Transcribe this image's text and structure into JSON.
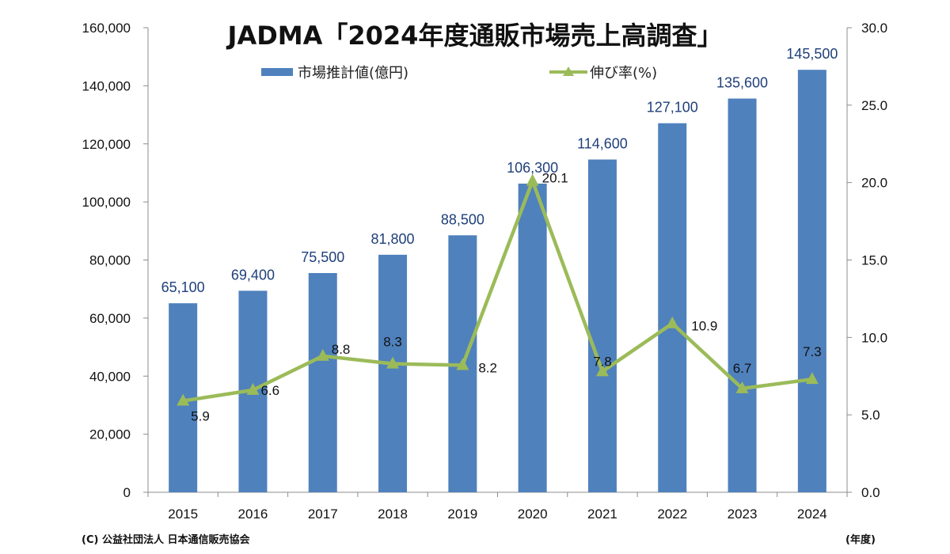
{
  "chart_data": {
    "type": "bar",
    "title": "JADMA「2024年度通販市場売上高調査」",
    "categories": [
      "2015",
      "2016",
      "2017",
      "2018",
      "2019",
      "2020",
      "2021",
      "2022",
      "2023",
      "2024"
    ],
    "series": [
      {
        "name": "市場推計値(億円)",
        "type": "bar",
        "axis": "left",
        "color": "#4f81bd",
        "values": [
          65100,
          69400,
          75500,
          81800,
          88500,
          106300,
          114600,
          127100,
          135600,
          145500
        ],
        "labels": [
          "65,100",
          "69,400",
          "75,500",
          "81,800",
          "88,500",
          "106,300",
          "114,600",
          "127,100",
          "135,600",
          "145,500"
        ]
      },
      {
        "name": "伸び率(%)",
        "type": "line",
        "axis": "right",
        "marker": "triangle",
        "color": "#9bbb59",
        "values": [
          5.9,
          6.6,
          8.8,
          8.3,
          8.2,
          20.1,
          7.8,
          10.9,
          6.7,
          7.3
        ],
        "labels": [
          "5.9",
          "6.6",
          "8.8",
          "8.3",
          "8.2",
          "20.1",
          "7.8",
          "10.9",
          "6.7",
          "7.3"
        ]
      }
    ],
    "y_left": {
      "range": [
        0,
        160000
      ],
      "ticks": [
        0,
        20000,
        40000,
        60000,
        80000,
        100000,
        120000,
        140000,
        160000
      ],
      "tick_labels": [
        "0",
        "20,000",
        "40,000",
        "60,000",
        "80,000",
        "100,000",
        "120,000",
        "140,000",
        "160,000"
      ]
    },
    "y_right": {
      "range": [
        0,
        30
      ],
      "ticks": [
        0,
        5,
        10,
        15,
        20,
        25,
        30
      ],
      "tick_labels": [
        "0.0",
        "5.0",
        "10.0",
        "15.0",
        "20.0",
        "25.0",
        "30.0"
      ]
    },
    "x_unit_label": "(年度)",
    "legend_position": "top",
    "grid": false
  },
  "footer": {
    "copyright": "(C) 公益社団法人 日本通信販売協会"
  }
}
